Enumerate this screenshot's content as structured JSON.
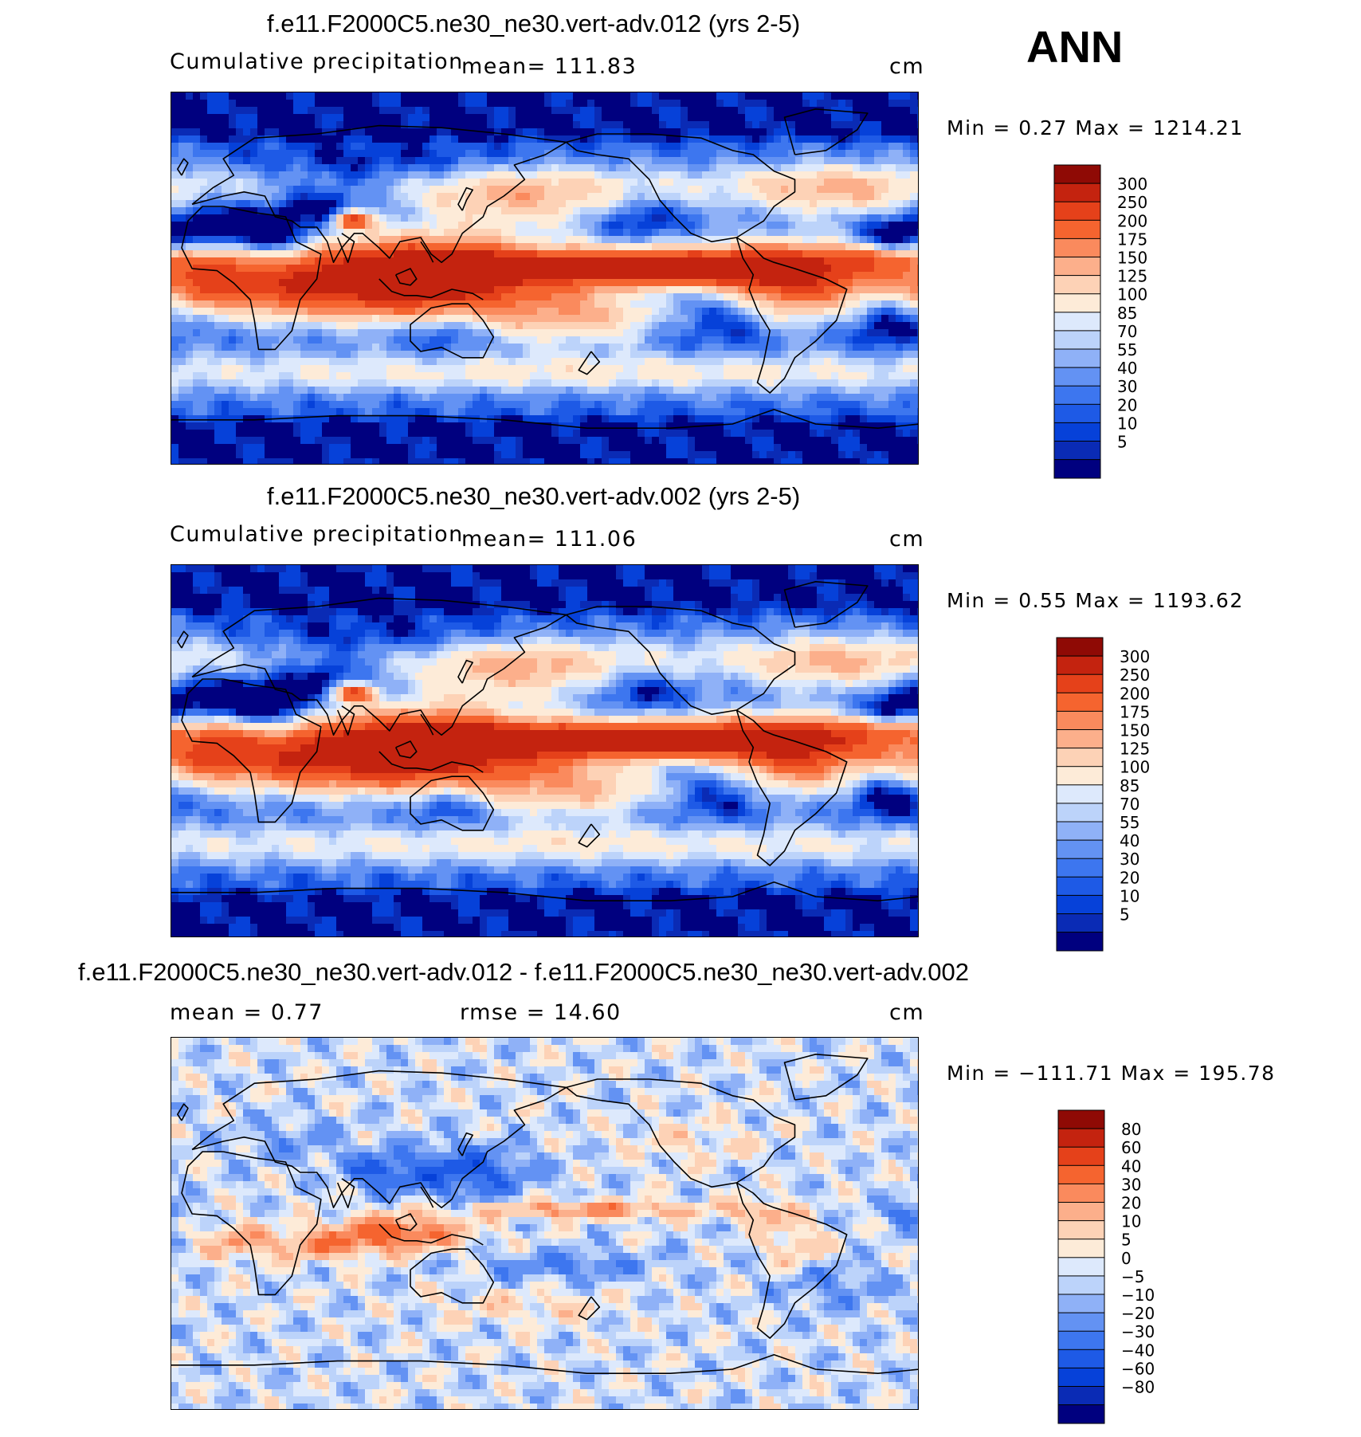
{
  "season": "ANN",
  "colors": {
    "abs_scale": [
      "#00007f",
      "#0a2bb5",
      "#0641d9",
      "#1e5ae6",
      "#3d76ef",
      "#6392f3",
      "#8fb1f7",
      "#bcd3fa",
      "#dde9fc",
      "#fdebd8",
      "#fdd2b6",
      "#fcaf8b",
      "#fa8a5d",
      "#f5642f",
      "#e5411a",
      "#c4230f",
      "#8f0a05"
    ],
    "diff_scale": [
      "#00007f",
      "#0a2bb5",
      "#0641d9",
      "#1e5ae6",
      "#3d76ef",
      "#6392f3",
      "#8fb1f7",
      "#bcd3fa",
      "#dde9fc",
      "#fdebd8",
      "#fdd2b6",
      "#fcaf8b",
      "#fa8a5d",
      "#f5642f",
      "#e5411a",
      "#c4230f",
      "#8f0a05"
    ]
  },
  "panels": [
    {
      "title": "f.e11.F2000C5.ne30_ne30.vert-adv.012 (yrs 2-5)",
      "variable": "Cumulative precipitation",
      "mean_text": "mean=  111.83",
      "units": "cm",
      "minmax": "Min =    0.27 Max = 1214.21"
    },
    {
      "title": "f.e11.F2000C5.ne30_ne30.vert-adv.002 (yrs 2-5)",
      "variable": "Cumulative precipitation",
      "mean_text": "mean=  111.06",
      "units": "cm",
      "minmax": "Min =    0.55 Max = 1193.62"
    },
    {
      "title": "f.e11.F2000C5.ne30_ne30.vert-adv.012 - f.e11.F2000C5.ne30_ne30.vert-adv.002",
      "mean_text": "mean =    0.77",
      "rmse_text": "rmse =    14.60",
      "units": "cm",
      "minmax": "Min = −111.71 Max =  195.78"
    }
  ],
  "chart_data": [
    {
      "type": "heatmap",
      "title": "f.e11.F2000C5.ne30_ne30.vert-adv.012 (yrs 2-5)",
      "variable": "Cumulative precipitation",
      "units": "cm",
      "mean": 111.83,
      "min": 0.27,
      "max": 1214.21,
      "colorbar_levels": [
        "300",
        "250",
        "200",
        "175",
        "150",
        "125",
        "100",
        "85",
        "70",
        "55",
        "40",
        "30",
        "20",
        "10",
        "5"
      ],
      "projection": "global cylindrical equidistant, centered on Pacific",
      "features": [
        {
          "region": "equatorial Pacific ITCZ",
          "value_range": "250-300+"
        },
        {
          "region": "Indian Ocean / maritime continent",
          "value_range": "175-300"
        },
        {
          "region": "eastern subtropical Pacific cold tongue",
          "value_range": "5-40"
        },
        {
          "region": "Sahara / Arabia / Australia interior",
          "value_range": "5-40"
        },
        {
          "region": "Antarctica and Arctic",
          "value_range": "5-20"
        },
        {
          "region": "Southern Ocean storm track",
          "value_range": "100-150"
        }
      ]
    },
    {
      "type": "heatmap",
      "title": "f.e11.F2000C5.ne30_ne30.vert-adv.002 (yrs 2-5)",
      "variable": "Cumulative precipitation",
      "units": "cm",
      "mean": 111.06,
      "min": 0.55,
      "max": 1193.62,
      "colorbar_levels": [
        "300",
        "250",
        "200",
        "175",
        "150",
        "125",
        "100",
        "85",
        "70",
        "55",
        "40",
        "30",
        "20",
        "10",
        "5"
      ],
      "projection": "global cylindrical equidistant, centered on Pacific",
      "features": [
        {
          "region": "equatorial Pacific ITCZ",
          "value_range": "250-300+"
        },
        {
          "region": "Indian Ocean / maritime continent",
          "value_range": "175-300"
        },
        {
          "region": "eastern subtropical Pacific cold tongue",
          "value_range": "5-40"
        },
        {
          "region": "Sahara / Arabia / Australia interior",
          "value_range": "5-40"
        },
        {
          "region": "Antarctica and Arctic",
          "value_range": "5-20"
        },
        {
          "region": "Southern Ocean storm track",
          "value_range": "100-150"
        }
      ]
    },
    {
      "type": "heatmap",
      "title": "f.e11.F2000C5.ne30_ne30.vert-adv.012 - f.e11.F2000C5.ne30_ne30.vert-adv.002",
      "units": "cm",
      "mean": 0.77,
      "rmse": 14.6,
      "min": -111.71,
      "max": 195.78,
      "colorbar_levels": [
        "80",
        "60",
        "40",
        "30",
        "20",
        "10",
        "5",
        "0",
        "−5",
        "−10",
        "−20",
        "−30",
        "−40",
        "−60",
        "−80"
      ],
      "projection": "global cylindrical equidistant, centered on Pacific",
      "features": [
        {
          "region": "equatorial Pacific ITCZ",
          "value_range": "20-60"
        },
        {
          "region": "Indian Ocean / maritime continent",
          "value_range": "20-80"
        },
        {
          "region": "northwest Pacific / east Asia",
          "value_range": "-20 to -60"
        },
        {
          "region": "high latitudes",
          "value_range": "-5 to 5"
        }
      ]
    }
  ]
}
